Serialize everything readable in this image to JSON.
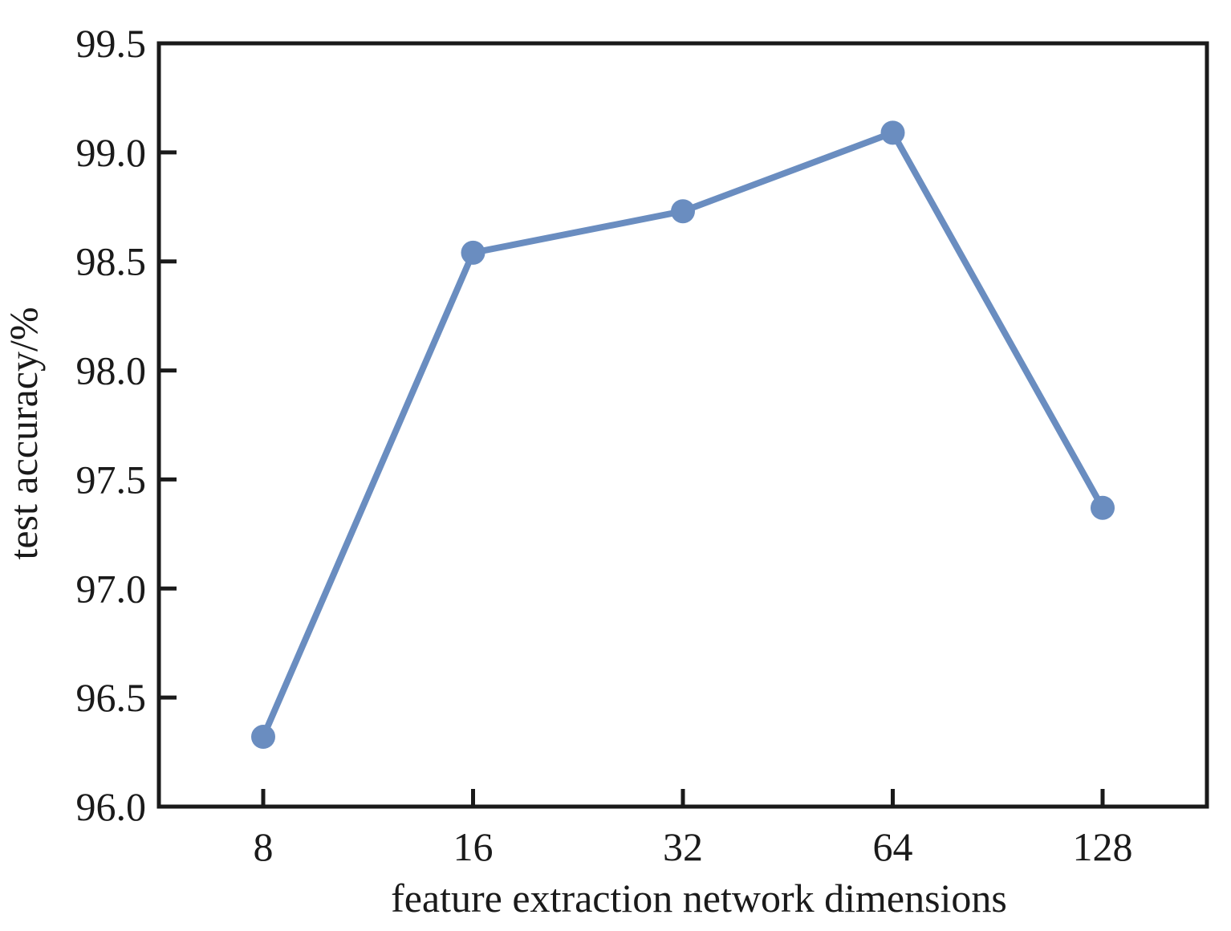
{
  "chart_data": {
    "type": "line",
    "x": [
      "8",
      "16",
      "32",
      "64",
      "128"
    ],
    "series": [
      {
        "values": [
          96.32,
          98.54,
          98.73,
          99.09,
          97.37
        ]
      }
    ],
    "xlabel": "feature extraction network dimensions",
    "ylabel": "test accuracy/%",
    "ylim": [
      96.0,
      99.5
    ],
    "yticks": [
      "96.0",
      "96.5",
      "97.0",
      "97.5",
      "98.0",
      "98.5",
      "99.0",
      "99.5"
    ],
    "grid": false,
    "series_color": "#6A8DC0",
    "axis_color": "#1a1a1a"
  }
}
